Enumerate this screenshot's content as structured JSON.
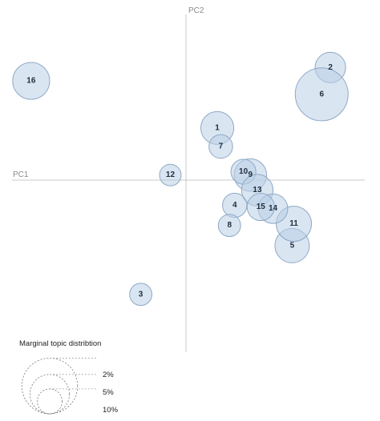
{
  "chart_data": {
    "type": "scatter",
    "xlabel": "PC1",
    "ylabel": "PC2",
    "xlim": [
      -1,
      1
    ],
    "ylim": [
      -1,
      1
    ],
    "points": [
      {
        "label": "1",
        "x": 0.18,
        "y": 0.31,
        "size": 3.5
      },
      {
        "label": "2",
        "x": 0.83,
        "y": 0.67,
        "size": 3.0
      },
      {
        "label": "3",
        "x": -0.26,
        "y": -0.68,
        "size": 1.6
      },
      {
        "label": "4",
        "x": 0.28,
        "y": -0.15,
        "size": 1.9
      },
      {
        "label": "5",
        "x": 0.61,
        "y": -0.39,
        "size": 3.8
      },
      {
        "label": "6",
        "x": 0.78,
        "y": 0.51,
        "size": 9.0
      },
      {
        "label": "7",
        "x": 0.2,
        "y": 0.2,
        "size": 1.8
      },
      {
        "label": "8",
        "x": 0.25,
        "y": -0.27,
        "size": 1.6
      },
      {
        "label": "9",
        "x": 0.37,
        "y": 0.03,
        "size": 3.4
      },
      {
        "label": "10",
        "x": 0.33,
        "y": 0.05,
        "size": 2.0
      },
      {
        "label": "11",
        "x": 0.62,
        "y": -0.26,
        "size": 4.0
      },
      {
        "label": "12",
        "x": -0.09,
        "y": 0.03,
        "size": 1.5
      },
      {
        "label": "13",
        "x": 0.41,
        "y": -0.06,
        "size": 3.2
      },
      {
        "label": "14",
        "x": 0.5,
        "y": -0.17,
        "size": 2.8
      },
      {
        "label": "15",
        "x": 0.43,
        "y": -0.16,
        "size": 2.4
      },
      {
        "label": "16",
        "x": -0.89,
        "y": 0.59,
        "size": 4.4
      }
    ],
    "legend": {
      "title": "Marginal topic distribtion",
      "entries": [
        {
          "label": "2%",
          "value": 2
        },
        {
          "label": "5%",
          "value": 5
        },
        {
          "label": "10%",
          "value": 10
        }
      ]
    }
  }
}
